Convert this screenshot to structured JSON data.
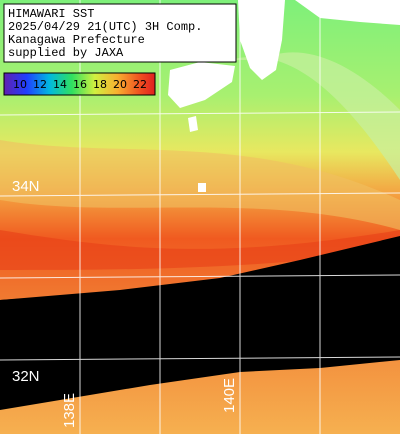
{
  "header": {
    "lines": [
      "HIMAWARI SST",
      "2025/04/29 21(UTC) 3H Comp.",
      "Kanagawa Prefecture",
      "supplied by JAXA"
    ]
  },
  "legend": {
    "labels": [
      10,
      12,
      14,
      16,
      18,
      20,
      22
    ]
  },
  "grid": {
    "lat_labels": [
      "34N",
      "32N"
    ],
    "lon_labels": [
      "138E",
      "140E"
    ]
  }
}
